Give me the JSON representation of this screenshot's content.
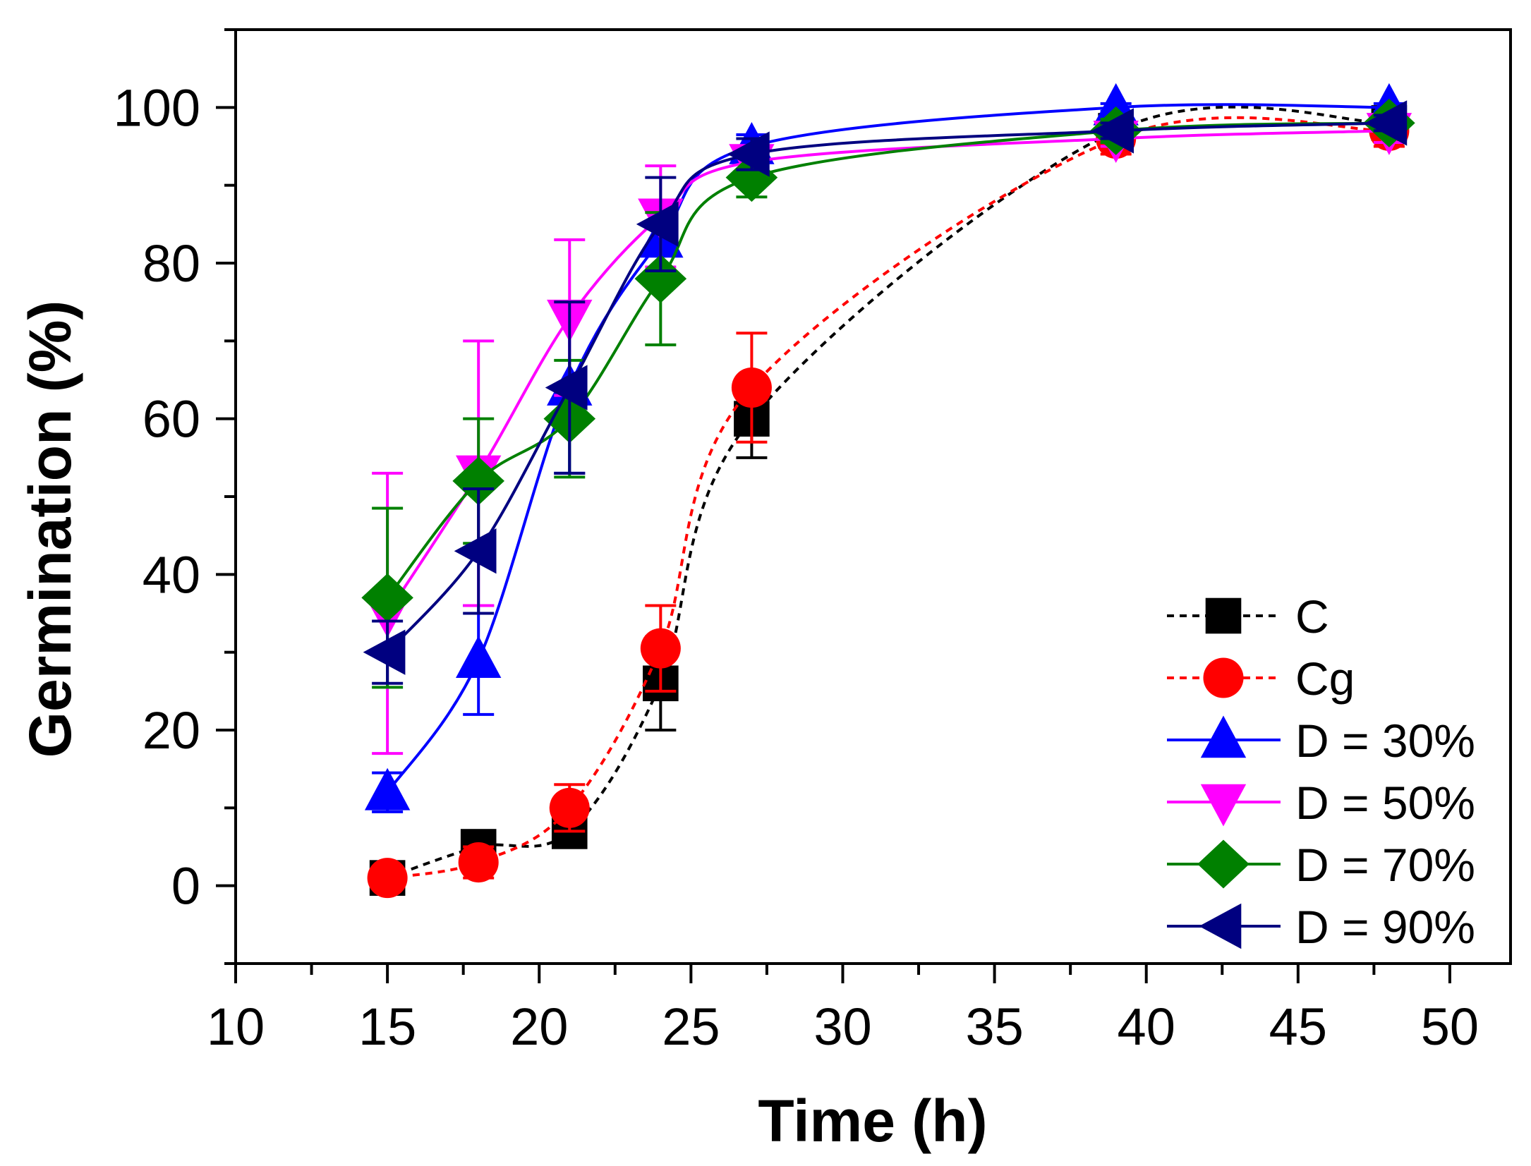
{
  "chart_data": {
    "type": "line",
    "title": "",
    "xlabel": "Time (h)",
    "ylabel": "Germination (%)",
    "xlim": [
      10,
      52
    ],
    "ylim": [
      -10,
      110
    ],
    "xticks": [
      10,
      15,
      20,
      25,
      30,
      35,
      40,
      45,
      50
    ],
    "yticks": [
      0,
      20,
      40,
      60,
      80,
      100
    ],
    "legend_position": "bottom-right",
    "x": [
      15,
      18,
      21,
      24,
      27,
      39,
      48
    ],
    "series": [
      {
        "name": "C",
        "color": "#000000",
        "marker": "square",
        "dashed": true,
        "values": [
          1,
          5,
          7,
          26,
          60,
          97,
          98
        ],
        "errors": [
          1,
          1,
          1.5,
          6,
          5,
          1.5,
          1
        ]
      },
      {
        "name": "Cg",
        "color": "#ff0000",
        "marker": "circle",
        "dashed": true,
        "values": [
          1,
          3,
          10,
          30.5,
          64,
          96,
          97
        ],
        "errors": [
          1,
          2,
          3,
          5.5,
          7,
          2,
          2
        ]
      },
      {
        "name": "D = 30%",
        "color": "#0000ff",
        "marker": "triangle-up",
        "dashed": false,
        "values": [
          12,
          29,
          64,
          83,
          95,
          100,
          100
        ],
        "errors": [
          2.5,
          7,
          11,
          4,
          1.5,
          0.5,
          0.5
        ]
      },
      {
        "name": "D = 50%",
        "color": "#ff00ff",
        "marker": "triangle-down",
        "dashed": false,
        "values": [
          35,
          53,
          73,
          86,
          93,
          96,
          97
        ],
        "errors": [
          18,
          17,
          10,
          6.5,
          2,
          1,
          1.5
        ]
      },
      {
        "name": "D = 70%",
        "color": "#008000",
        "marker": "diamond",
        "dashed": false,
        "values": [
          37,
          52,
          60,
          78,
          91,
          97,
          98
        ],
        "errors": [
          11.5,
          8,
          7.5,
          8.5,
          2.5,
          1.5,
          1
        ]
      },
      {
        "name": "D = 90%",
        "color": "#000080",
        "marker": "triangle-left",
        "dashed": false,
        "values": [
          30,
          43,
          64,
          85,
          94,
          97,
          98
        ],
        "errors": [
          4,
          8,
          11,
          6,
          2,
          1,
          1
        ]
      }
    ]
  }
}
